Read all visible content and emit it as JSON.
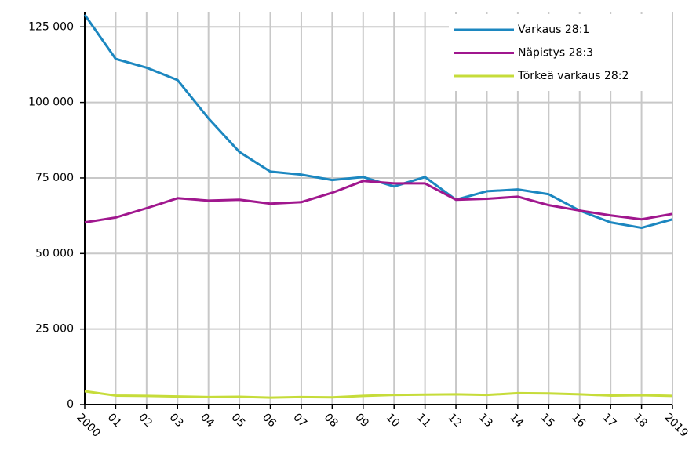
{
  "chart_data": {
    "type": "line",
    "categories": [
      "2000",
      "01",
      "02",
      "03",
      "04",
      "05",
      "06",
      "07",
      "08",
      "09",
      "10",
      "11",
      "12",
      "13",
      "14",
      "15",
      "16",
      "17",
      "18",
      "2019"
    ],
    "series": [
      {
        "name": "Varkaus 28:1",
        "color": "#1c87c0",
        "values": [
          129000,
          114400,
          111500,
          107400,
          94700,
          83600,
          77100,
          76100,
          74300,
          75300,
          72200,
          75300,
          67800,
          70600,
          71200,
          69600,
          64200,
          60300,
          58500,
          61300
        ]
      },
      {
        "name": "Näpistys 28:3",
        "color": "#a0178e",
        "values": [
          60300,
          61900,
          65000,
          68300,
          67500,
          67800,
          66500,
          67000,
          70100,
          74000,
          73200,
          73200,
          67800,
          68100,
          68800,
          66000,
          64200,
          62600,
          61300,
          63100
        ]
      },
      {
        "name": "Törkeä varkaus 28:2",
        "color": "#c6dc3a",
        "values": [
          4400,
          3000,
          2900,
          2700,
          2500,
          2600,
          2300,
          2500,
          2400,
          2900,
          3200,
          3300,
          3400,
          3200,
          3800,
          3700,
          3400,
          3000,
          3100,
          2900
        ]
      }
    ],
    "ylim": [
      0,
      130000
    ],
    "yticks": [
      0,
      {
        "value": 25000,
        "label": "25 000"
      },
      {
        "value": 50000,
        "label": "50 000"
      },
      {
        "value": 75000,
        "label": "75 000"
      },
      {
        "value": 100000,
        "label": "100 000"
      },
      {
        "value": 125000,
        "label": "125 000"
      }
    ],
    "grid": true,
    "legend": "upper right"
  }
}
